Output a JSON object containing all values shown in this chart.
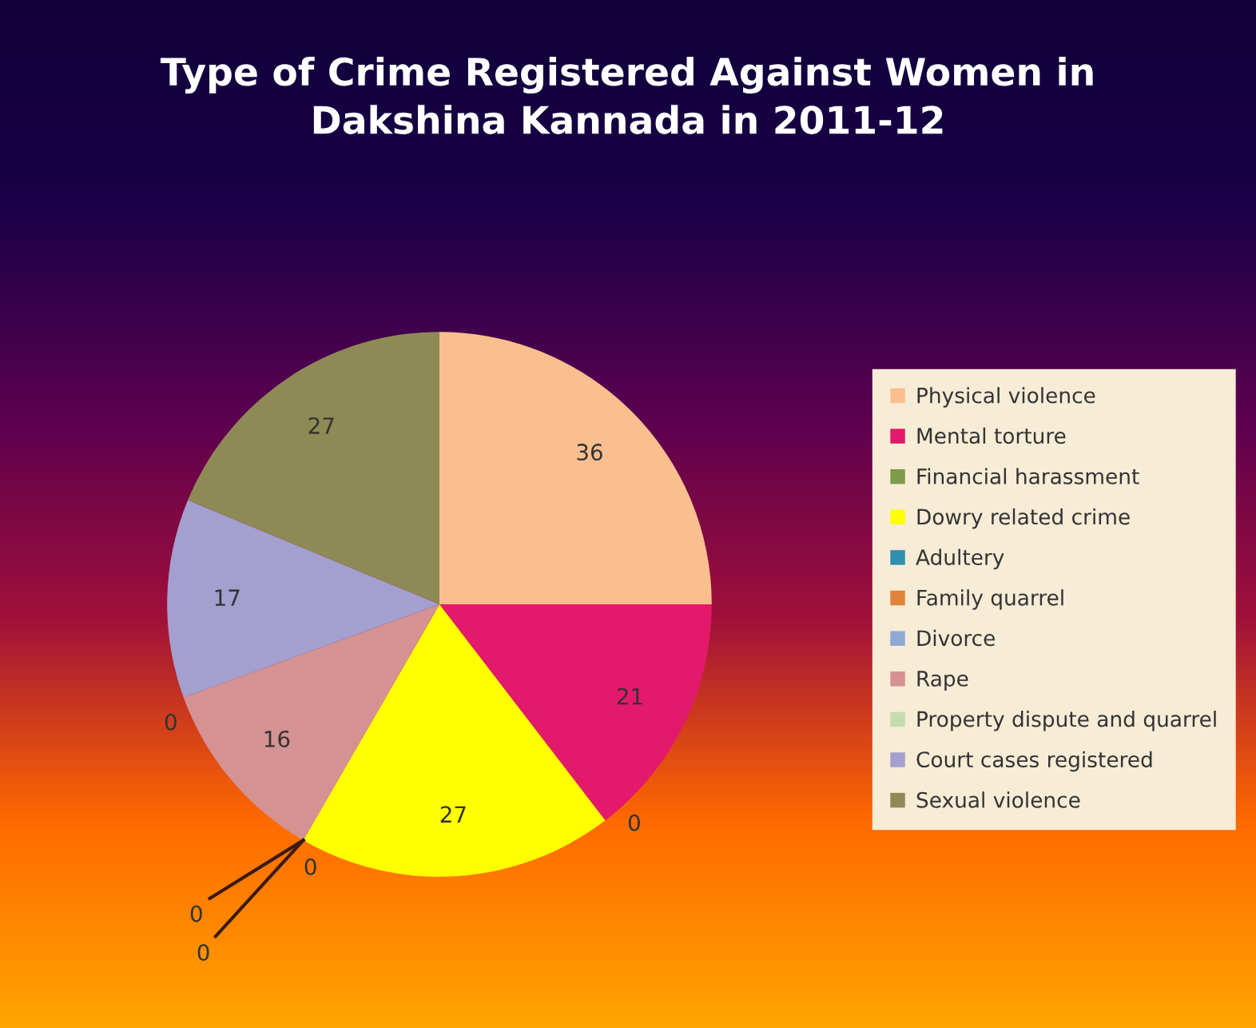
{
  "chart_data": {
    "type": "pie",
    "title": "Type of Crime Registered Against Women in\nDakshina Kannada in 2011-12",
    "categories": [
      "Physical violence",
      "Mental torture",
      "Financial harassment",
      "Dowry related crime",
      "Adultery",
      "Family quarrel",
      "Divorce",
      "Rape",
      "Property dispute and quarrel",
      "Court cases registered",
      "Sexual violence"
    ],
    "values": [
      36,
      21,
      0,
      27,
      0,
      0,
      0,
      16,
      0,
      17,
      27
    ],
    "colors": [
      "#f9bf8f",
      "#e3196b",
      "#7f9a48",
      "#ffff00",
      "#2e8fae",
      "#e0823a",
      "#8ea9d4",
      "#d49292",
      "#c6dcb0",
      "#a39fce",
      "#8e8a55"
    ],
    "value_labels": [
      "36",
      "21",
      "0",
      "27",
      "0",
      "0",
      "0",
      "16",
      "0",
      "17",
      "27"
    ],
    "legend": "right"
  }
}
